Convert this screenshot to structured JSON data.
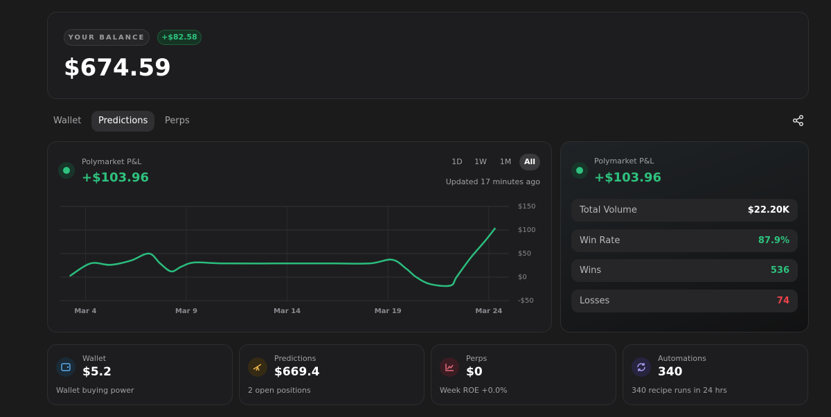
{
  "balance": {
    "label": "YOUR BALANCE",
    "change": "+$82.58",
    "amount": "$674.59"
  },
  "tabs": [
    "Wallet",
    "Predictions",
    "Perps"
  ],
  "pnl_card": {
    "title": "Polymarket P&L",
    "value": "+$103.96",
    "ranges": [
      "1D",
      "1W",
      "1M",
      "All"
    ],
    "updated": "Updated 17 minutes ago"
  },
  "chart_data": {
    "type": "line",
    "color": "#2bbd7e",
    "grid": true,
    "x": [
      3.25,
      4.25,
      5.25,
      6.25,
      7.15,
      7.7,
      8.25,
      8.75,
      9.4,
      10.75,
      13.5,
      16.2,
      18.1,
      19.2,
      19.9,
      20.4,
      21.1,
      22.1,
      22.4,
      23.1,
      23.8,
      24.3
    ],
    "values": [
      3,
      29,
      26,
      35,
      50,
      29,
      12,
      22,
      31,
      29,
      29,
      29,
      29,
      37,
      18,
      0,
      -15,
      -18,
      0,
      41,
      76,
      103
    ],
    "xlim": [
      2.75,
      25
    ],
    "xticks": [
      {
        "value": 4,
        "label": "Mar 4"
      },
      {
        "value": 9,
        "label": "Mar 9"
      },
      {
        "value": 14,
        "label": "Mar 14"
      },
      {
        "value": 19,
        "label": "Mar 19"
      },
      {
        "value": 24,
        "label": "Mar 24"
      }
    ],
    "ylim": [
      -50,
      150
    ],
    "yticks": [
      {
        "value": 150,
        "label": "$150"
      },
      {
        "value": 100,
        "label": "$100"
      },
      {
        "value": 50,
        "label": "$50"
      },
      {
        "value": 0,
        "label": "$0"
      },
      {
        "value": -50,
        "label": "-$50"
      }
    ]
  },
  "summary_card": {
    "title": "Polymarket P&L",
    "value": "+$103.96",
    "stats": [
      {
        "label": "Total Volume",
        "value": "$22.20K",
        "color": "#ffffff"
      },
      {
        "label": "Win Rate",
        "value": "87.9%",
        "color": "#2ec27e"
      },
      {
        "label": "Wins",
        "value": "536",
        "color": "#2ec27e"
      },
      {
        "label": "Losses",
        "value": "74",
        "color": "#f0434b"
      }
    ]
  },
  "cards": [
    {
      "title": "Wallet",
      "value": "$5.2",
      "note": "Wallet buying power"
    },
    {
      "title": "Predictions",
      "value": "$669.4",
      "note": "2 open positions"
    },
    {
      "title": "Perps",
      "value": "$0",
      "note": "Week ROE +0.0%"
    },
    {
      "title": "Automations",
      "value": "340",
      "note": "340 recipe runs in 24 hrs"
    }
  ]
}
